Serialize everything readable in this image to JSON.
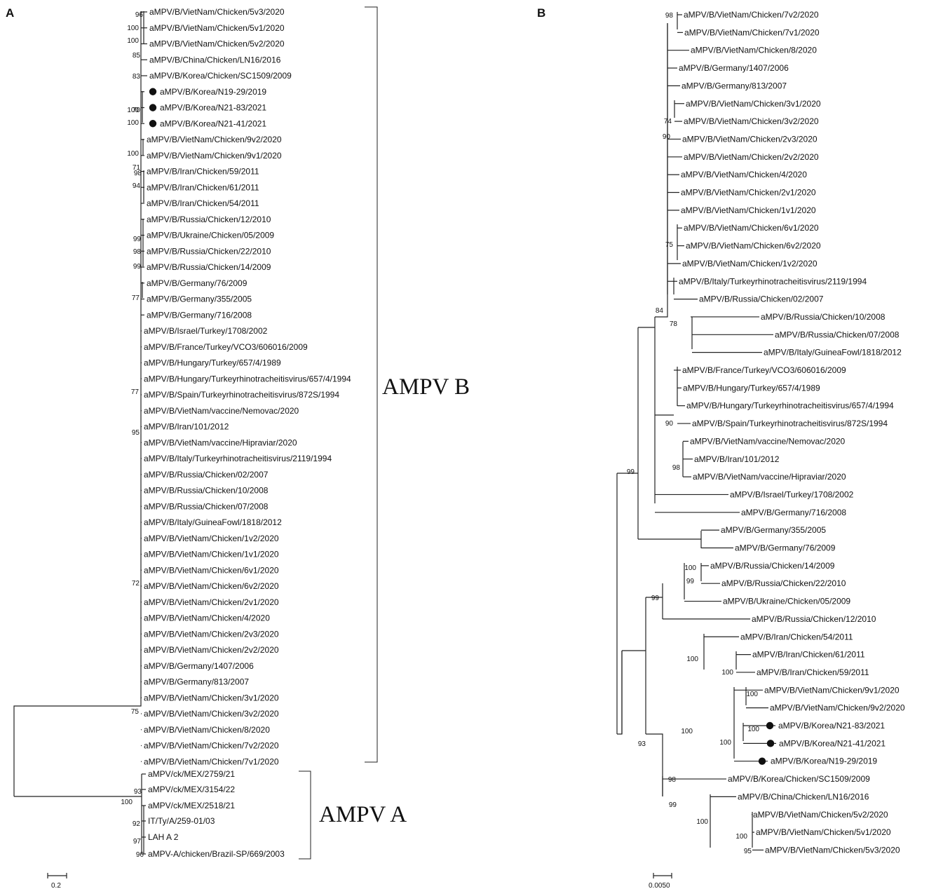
{
  "panels": {
    "A": {
      "label": "A",
      "scale_label": "0.2",
      "clade_b": "AMPV B",
      "clade_a": "AMPV A",
      "taxa_b": [
        "aMPV/B/VietNam/Chicken/5v3/2020",
        "aMPV/B/VietNam/Chicken/5v1/2020",
        "aMPV/B/VietNam/Chicken/5v2/2020",
        "aMPV/B/China/Chicken/LN16/2016",
        "aMPV/B/Korea/Chicken/SC1509/2009",
        "aMPV/B/Korea/N19-29/2019",
        "aMPV/B/Korea/N21-83/2021",
        "aMPV/B/Korea/N21-41/2021",
        "aMPV/B/VietNam/Chicken/9v2/2020",
        "aMPV/B/VietNam/Chicken/9v1/2020",
        "aMPV/B/Iran/Chicken/59/2011",
        "aMPV/B/Iran/Chicken/61/2011",
        "aMPV/B/Iran/Chicken/54/2011",
        "aMPV/B/Russia/Chicken/12/2010",
        "aMPV/B/Ukraine/Chicken/05/2009",
        "aMPV/B/Russia/Chicken/22/2010",
        "aMPV/B/Russia/Chicken/14/2009",
        "aMPV/B/Germany/76/2009",
        "aMPV/B/Germany/355/2005",
        "aMPV/B/Germany/716/2008",
        "aMPV/B/Israel/Turkey/1708/2002",
        "aMPV/B/France/Turkey/VCO3/606016/2009",
        "aMPV/B/Hungary/Turkey/657/4/1989",
        "aMPV/B/Hungary/Turkeyrhinotracheitisvirus/657/4/1994",
        "aMPV/B/Spain/Turkeyrhinotracheitisvirus/872S/1994",
        "aMPV/B/VietNam/vaccine/Nemovac/2020",
        "aMPV/B/Iran/101/2012",
        "aMPV/B/VietNam/vaccine/Hipraviar/2020",
        "aMPV/B/Italy/Turkeyrhinotracheitisvirus/2119/1994",
        "aMPV/B/Russia/Chicken/02/2007",
        "aMPV/B/Russia/Chicken/10/2008",
        "aMPV/B/Russia/Chicken/07/2008",
        "aMPV/B/Italy/GuineaFowl/1818/2012",
        "aMPV/B/VietNam/Chicken/1v2/2020",
        "aMPV/B/VietNam/Chicken/1v1/2020",
        "aMPV/B/VietNam/Chicken/6v1/2020",
        "aMPV/B/VietNam/Chicken/6v2/2020",
        "aMPV/B/VietNam/Chicken/2v1/2020",
        "aMPV/B/VietNam/Chicken/4/2020",
        "aMPV/B/VietNam/Chicken/2v3/2020",
        "aMPV/B/VietNam/Chicken/2v2/2020",
        "aMPV/B/Germany/1407/2006",
        "aMPV/B/Germany/813/2007",
        "aMPV/B/VietNam/Chicken/3v1/2020",
        "aMPV/B/VietNam/Chicken/3v2/2020",
        "aMPV/B/VietNam/Chicken/8/2020",
        "aMPV/B/VietNam/Chicken/7v2/2020",
        "aMPV/B/VietNam/Chicken/7v1/2020"
      ],
      "taxa_a": [
        "aMPV/ck/MEX/2759/21",
        "aMPV/ck/MEX/3154/22",
        "aMPV/ck/MEX/2518/21",
        "IT/Ty/A/259-01/03",
        "LAH A 2",
        "aMPV-A/chicken/Brazil-SP/669/2003"
      ],
      "bootstrap": [
        "96",
        "100",
        "100",
        "85",
        "83",
        "70",
        "100",
        "100",
        "100",
        "71",
        "98",
        "94",
        "99",
        "98",
        "99",
        "77",
        "77",
        "95",
        "72",
        "75",
        "93",
        "100",
        "92",
        "97",
        "96"
      ]
    },
    "B": {
      "label": "B",
      "scale_label": "0.0050",
      "taxa": [
        "aMPV/B/VietNam/Chicken/7v2/2020",
        "aMPV/B/VietNam/Chicken/7v1/2020",
        "aMPV/B/VietNam/Chicken/8/2020",
        "aMPV/B/Germany/1407/2006",
        "aMPV/B/Germany/813/2007",
        "aMPV/B/VietNam/Chicken/3v1/2020",
        "aMPV/B/VietNam/Chicken/3v2/2020",
        "aMPV/B/VietNam/Chicken/2v3/2020",
        "aMPV/B/VietNam/Chicken/2v2/2020",
        "aMPV/B/VietNam/Chicken/4/2020",
        "aMPV/B/VietNam/Chicken/2v1/2020",
        "aMPV/B/VietNam/Chicken/1v1/2020",
        "aMPV/B/VietNam/Chicken/6v1/2020",
        "aMPV/B/VietNam/Chicken/6v2/2020",
        "aMPV/B/VietNam/Chicken/1v2/2020",
        "aMPV/B/Italy/Turkeyrhinotracheitisvirus/2119/1994",
        "aMPV/B/Russia/Chicken/02/2007",
        "aMPV/B/Russia/Chicken/10/2008",
        "aMPV/B/Russia/Chicken/07/2008",
        "aMPV/B/Italy/GuineaFowl/1818/2012",
        "aMPV/B/France/Turkey/VCO3/606016/2009",
        "aMPV/B/Hungary/Turkey/657/4/1989",
        "aMPV/B/Hungary/Turkeyrhinotracheitisvirus/657/4/1994",
        "aMPV/B/Spain/Turkeyrhinotracheitisvirus/872S/1994",
        "aMPV/B/VietNam/vaccine/Nemovac/2020",
        "aMPV/B/Iran/101/2012",
        "aMPV/B/VietNam/vaccine/Hipraviar/2020",
        "aMPV/B/Israel/Turkey/1708/2002",
        "aMPV/B/Germany/716/2008",
        "aMPV/B/Germany/355/2005",
        "aMPV/B/Germany/76/2009",
        "aMPV/B/Russia/Chicken/14/2009",
        "aMPV/B/Russia/Chicken/22/2010",
        "aMPV/B/Ukraine/Chicken/05/2009",
        "aMPV/B/Russia/Chicken/12/2010",
        "aMPV/B/Iran/Chicken/54/2011",
        "aMPV/B/Iran/Chicken/61/2011",
        "aMPV/B/Iran/Chicken/59/2011",
        "aMPV/B/VietNam/Chicken/9v1/2020",
        "aMPV/B/VietNam/Chicken/9v2/2020",
        "aMPV/B/Korea/N21-83/2021",
        "aMPV/B/Korea/N21-41/2021",
        "aMPV/B/Korea/N19-29/2019",
        "aMPV/B/Korea/Chicken/SC1509/2009",
        "aMPV/B/China/Chicken/LN16/2016",
        "aMPV/B/VietNam/Chicken/5v2/2020",
        "aMPV/B/VietNam/Chicken/5v1/2020",
        "aMPV/B/VietNam/Chicken/5v3/2020"
      ],
      "bootstrap": [
        "98",
        "74",
        "90",
        "75",
        "84",
        "78",
        "90",
        "98",
        "99",
        "100",
        "99",
        "99",
        "100",
        "100",
        "100",
        "100",
        "100",
        "93",
        "100",
        "98",
        "99",
        "100",
        "100",
        "95"
      ]
    }
  }
}
